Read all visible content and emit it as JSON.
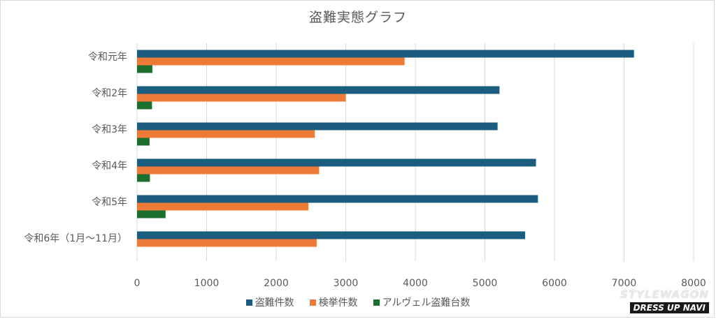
{
  "chart_data": {
    "type": "bar",
    "orientation": "horizontal",
    "title": "盗難実態グラフ",
    "categories": [
      "令和元年",
      "令和2年",
      "令和3年",
      "令和4年",
      "令和5年",
      "令和6年（1月～11月）"
    ],
    "series": [
      {
        "name": "盗難件数",
        "color": "#1b5c7f",
        "values": [
          7143,
          5210,
          5182,
          5734,
          5762,
          5578
        ]
      },
      {
        "name": "検挙件数",
        "color": "#ee7a38",
        "values": [
          3845,
          2999,
          2555,
          2617,
          2462,
          2582
        ]
      },
      {
        "name": "アルヴェル盗難台数",
        "color": "#1c6e2c",
        "values": [
          220,
          215,
          180,
          185,
          410,
          null
        ]
      }
    ],
    "xlim": [
      0,
      8000
    ],
    "xticks": [
      "0",
      "1000",
      "2000",
      "3000",
      "4000",
      "5000",
      "6000",
      "7000",
      "8000"
    ],
    "grid": "vertical",
    "legend_position": "bottom"
  },
  "watermark": {
    "line1": "STYLEWAGON",
    "line2": "DRESS UP NAVI"
  }
}
